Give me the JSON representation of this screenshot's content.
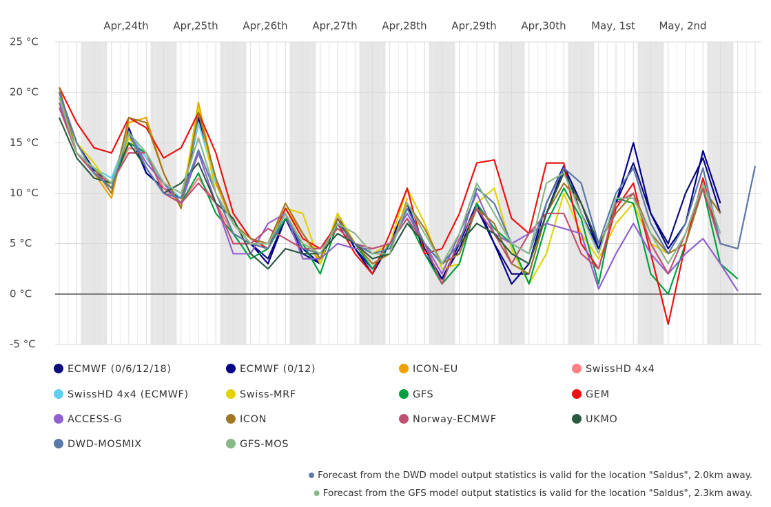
{
  "chart_data": {
    "type": "line",
    "categories": [
      null,
      null,
      null,
      null,
      "Apr,24th",
      null,
      null,
      null,
      "Apr,25th",
      null,
      null,
      null,
      "Apr,26th",
      null,
      null,
      null,
      "Apr,27th",
      null,
      null,
      null,
      "Apr,28th",
      null,
      null,
      null,
      "Apr,29th",
      null,
      null,
      null,
      "Apr,30th",
      null,
      null,
      null,
      "May, 1st",
      null,
      null,
      null,
      "May, 2nd",
      null,
      null,
      null,
      null
    ],
    "ylim": [
      -5,
      25
    ],
    "yticks": [
      {
        "value": -5,
        "label": "-5 °C"
      },
      {
        "value": 0,
        "label": "0 °C"
      },
      {
        "value": 5,
        "label": "5 °C"
      },
      {
        "value": 10,
        "label": "10 °C"
      },
      {
        "value": 15,
        "label": "15 °C"
      },
      {
        "value": 20,
        "label": "20 °C"
      },
      {
        "value": 25,
        "label": "25 °C"
      }
    ],
    "grid": true,
    "series": [
      {
        "name": "ECMWF (0/6/12/18)",
        "color": "#0c0c7a",
        "values": [
          20,
          15,
          12.3,
          11,
          16.5,
          12,
          10.5,
          9.5,
          17.5,
          11,
          7,
          5,
          3.5,
          7.5,
          4,
          3,
          7.5,
          4.5,
          2.5,
          5,
          9,
          4.5,
          1.5,
          4.5,
          8.5,
          5,
          2,
          2,
          8,
          12.5,
          8,
          4.5,
          9,
          13,
          8,
          5,
          10,
          13.5,
          8,
          null,
          null
        ]
      },
      {
        "name": "ECMWF (0/12)",
        "color": "#00008b",
        "values": [
          20,
          15,
          12,
          10.5,
          16,
          12,
          10.5,
          9,
          17,
          11.5,
          7,
          5,
          3,
          7.5,
          4.5,
          3,
          8,
          4.5,
          2,
          5,
          9,
          4,
          1.5,
          5,
          9,
          5,
          1,
          3,
          9,
          12.7,
          9,
          4.5,
          9,
          15,
          8,
          4.5,
          7,
          14.2,
          9,
          null,
          null
        ]
      },
      {
        "name": "ICON-EU",
        "color": "#f0a000",
        "values": [
          20,
          14,
          12,
          9.5,
          17,
          17.5,
          12,
          8.5,
          19,
          11,
          7,
          5,
          5,
          8.5,
          6,
          3,
          8,
          5,
          3,
          4,
          9.5,
          null,
          null,
          null,
          null,
          null,
          null,
          null,
          null,
          null,
          null,
          null,
          null,
          null,
          null,
          null,
          null,
          null,
          null,
          null,
          null
        ]
      },
      {
        "name": "SwissHD 4x4",
        "color": "#ff8080",
        "values": [
          18.5,
          14,
          12,
          11,
          14.5,
          14,
          10.5,
          9,
          11.5,
          9,
          6,
          5,
          4.5,
          null,
          null,
          null,
          null,
          null,
          null,
          null,
          null,
          null,
          null,
          null,
          null,
          null,
          null,
          null,
          null,
          null,
          null,
          null,
          null,
          null,
          null,
          null,
          null,
          null,
          null,
          null,
          null
        ]
      },
      {
        "name": "SwissHD 4x4 (ECMWF)",
        "color": "#60d0f0",
        "values": [
          19,
          14,
          12.5,
          11.5,
          16,
          13.5,
          11,
          9.5,
          17,
          11,
          null,
          null,
          null,
          null,
          null,
          null,
          null,
          null,
          null,
          null,
          null,
          null,
          null,
          null,
          null,
          null,
          null,
          null,
          null,
          null,
          null,
          null,
          null,
          null,
          null,
          null,
          null,
          null,
          null,
          null,
          null
        ]
      },
      {
        "name": "Swiss-MRF",
        "color": "#e2d200",
        "values": [
          19,
          15,
          13,
          10.5,
          15.5,
          13,
          11,
          9,
          18.5,
          10,
          7,
          5,
          5,
          8.5,
          8,
          3,
          8,
          5,
          4,
          5,
          10.5,
          7,
          2.5,
          3,
          9,
          10.5,
          4.5,
          1,
          4,
          10,
          6,
          3.5,
          7,
          9,
          5,
          4,
          5,
          10.5,
          8,
          null,
          null
        ]
      },
      {
        "name": "GFS",
        "color": "#00a040",
        "values": [
          19,
          14,
          12,
          10.5,
          15,
          14,
          11,
          9,
          12,
          8,
          6,
          3.5,
          4.5,
          7.5,
          5,
          2,
          7,
          5,
          2.5,
          5,
          7.5,
          4,
          1,
          3,
          9,
          6.5,
          5,
          1,
          7,
          10.5,
          7.5,
          1,
          9.5,
          9,
          2,
          0,
          5,
          10.5,
          3,
          1.5,
          null
        ]
      },
      {
        "name": "GEM",
        "color": "#ee1010",
        "values": [
          20.5,
          17,
          14.5,
          14,
          17.5,
          16.5,
          13.5,
          14.5,
          18,
          14,
          8,
          5.5,
          4.5,
          8.5,
          5.5,
          4.5,
          7,
          4,
          2,
          6,
          10.5,
          4,
          4.5,
          8,
          13,
          13.3,
          7.5,
          6,
          13,
          13,
          5,
          2.5,
          8.5,
          11,
          4,
          -3,
          5,
          11.5,
          5,
          null,
          null
        ]
      },
      {
        "name": "ACCESS-G",
        "color": "#9060d0",
        "values": [
          19,
          14,
          12,
          11,
          16,
          13,
          11,
          9,
          14,
          9,
          4,
          4,
          7,
          8,
          3.5,
          3.5,
          5,
          4.5,
          4.5,
          5,
          8,
          5,
          2,
          6,
          10,
          6,
          5,
          6,
          7,
          6.5,
          6,
          0.5,
          4,
          7,
          4,
          2,
          4,
          5.5,
          3,
          0.3,
          null
        ]
      },
      {
        "name": "ICON",
        "color": "#a07828",
        "values": [
          20.5,
          14,
          12.5,
          10,
          17.5,
          17,
          12,
          8.5,
          18,
          11.5,
          7,
          5.5,
          5,
          9,
          6,
          3.5,
          7.5,
          5,
          3,
          4,
          9,
          6.5,
          3,
          4,
          8.5,
          7,
          3,
          2,
          8,
          11,
          9,
          5,
          8,
          10,
          6,
          4,
          5,
          10.5,
          8,
          null,
          null
        ]
      },
      {
        "name": "Norway-ECMWF",
        "color": "#c05070",
        "values": [
          18.5,
          14,
          12,
          11,
          14,
          14,
          10,
          9,
          11,
          9,
          5,
          5,
          6.5,
          5.5,
          4.5,
          4.5,
          6.5,
          5,
          4.5,
          5,
          7.5,
          5,
          1,
          5.5,
          8.5,
          6,
          3,
          6,
          8,
          8,
          4,
          2.5,
          9,
          10,
          5,
          2,
          6,
          10.5,
          5,
          4.5,
          null
        ]
      },
      {
        "name": "UKMO",
        "color": "#2a5a40",
        "values": [
          17.5,
          13.5,
          11.5,
          11,
          15,
          12.5,
          10,
          11,
          13,
          9,
          7.5,
          4,
          2.5,
          4.5,
          4,
          4,
          6,
          5,
          3.5,
          4,
          7,
          5,
          3,
          5,
          7,
          6,
          4,
          3,
          8,
          12,
          9,
          5,
          null,
          null,
          null,
          null,
          null,
          null,
          null,
          null,
          null
        ]
      },
      {
        "name": "DWD-MOSMIX",
        "color": "#5a78a8",
        "values": [
          20,
          15,
          12,
          10.5,
          16,
          12.5,
          10,
          9.5,
          14.3,
          10,
          6,
          5,
          4.5,
          8,
          4.5,
          4,
          7,
          5,
          4,
          4.5,
          8.5,
          5,
          3,
          5,
          10.5,
          9,
          5,
          4,
          9,
          12.5,
          11,
          5,
          10,
          12.5,
          7,
          4,
          7,
          12.5,
          5,
          4.5,
          12.7
        ]
      },
      {
        "name": "GFS-MOS",
        "color": "#88b888",
        "values": [
          19.5,
          14,
          12.5,
          11,
          16,
          14,
          11,
          10,
          15.5,
          10,
          7,
          5,
          5,
          8,
          5,
          4,
          7,
          6,
          4,
          4,
          9,
          6,
          3,
          6,
          11,
          8,
          5,
          4,
          11,
          12,
          8,
          4,
          9.5,
          9.5,
          6,
          3,
          6,
          11,
          6,
          null,
          null
        ]
      }
    ],
    "notes": [
      "Forecast from the DWD model output statistics is valid for the location \"Saldus\", 2.0km away.",
      "Forecast from the GFS model output statistics is valid for the location \"Saldus\", 2.3km away."
    ]
  }
}
